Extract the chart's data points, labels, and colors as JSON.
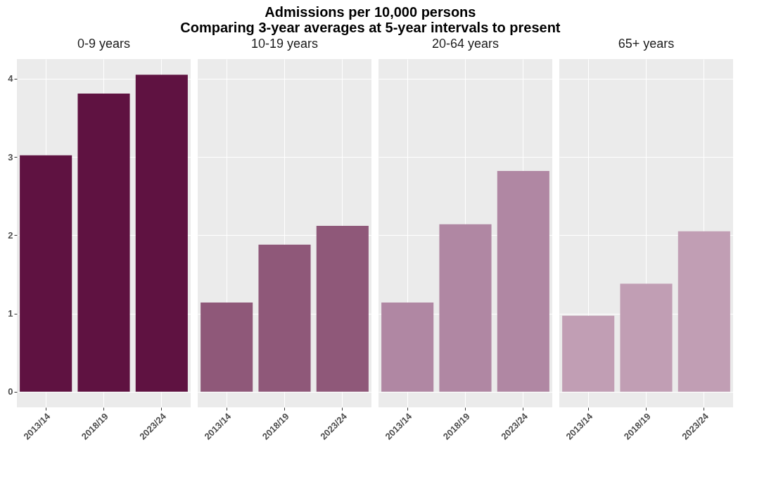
{
  "chart_data": [
    {
      "type": "bar",
      "title": "0-9 years",
      "annotations": [
        "Admissions per 10,000 persons",
        "Comparing 3-year averages at 5-year intervals to present"
      ],
      "categories": [
        "2013/14",
        "2018/19",
        "2023/24"
      ],
      "values": [
        3.02,
        3.81,
        4.05
      ],
      "color": "#5f1241",
      "ylim": [
        -0.2,
        4.25
      ],
      "yticks": [
        0,
        1,
        2,
        3,
        4
      ],
      "grid": true
    },
    {
      "type": "bar",
      "title": "10-19 years",
      "categories": [
        "2013/14",
        "2018/19",
        "2023/24"
      ],
      "values": [
        1.14,
        1.88,
        2.12
      ],
      "color": "#8f5879",
      "ylim": [
        -0.2,
        4.25
      ],
      "yticks": [
        0,
        1,
        2,
        3,
        4
      ],
      "grid": true,
      "tick_labels": "x"
    },
    {
      "type": "bar",
      "title": "20-64 years",
      "categories": [
        "2013/14",
        "2018/19",
        "2023/24"
      ],
      "values": [
        1.14,
        2.14,
        2.82
      ],
      "color": "#b087a3",
      "ylim": [
        -0.2,
        4.25
      ],
      "yticks": [
        0,
        1,
        2,
        3,
        4
      ],
      "grid": true,
      "tick_labels": "x"
    },
    {
      "type": "bar",
      "title": "65+ years",
      "categories": [
        "2013/14",
        "2018/19",
        "2023/24"
      ],
      "values": [
        0.97,
        1.38,
        2.05
      ],
      "color": "#c19eb4",
      "ylim": [
        -0.2,
        4.25
      ],
      "yticks": [
        0,
        1,
        2,
        3,
        4
      ],
      "grid": true,
      "tick_labels": "x"
    }
  ]
}
